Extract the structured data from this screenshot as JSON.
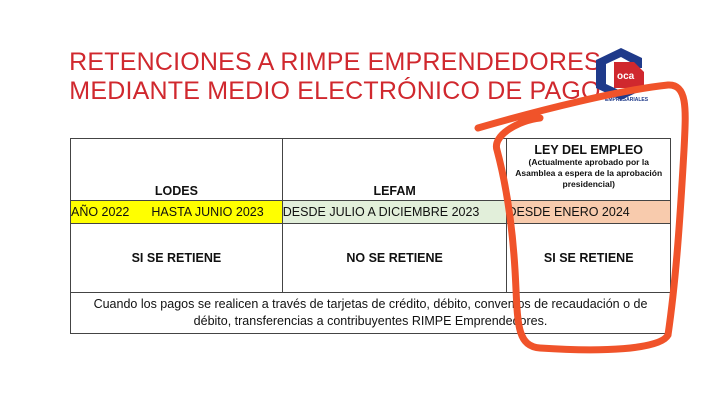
{
  "title": {
    "line1": "RETENCIONES A RIMPE EMPRENDEDORES",
    "line2": "MEDIANTE MEDIO ELECTRÓNICO DE PAGO"
  },
  "logo": {
    "text": "oca",
    "subtitle": "EMPRESARIALES"
  },
  "table": {
    "columns": [
      {
        "header": "LODES",
        "period_a": "AÑO 2022",
        "period_b": "HASTA JUNIO 2023",
        "result": "SI SE RETIENE",
        "color": "#ffff00"
      },
      {
        "header": "LEFAM",
        "period": "DESDE JULIO A DICIEMBRE 2023",
        "result": "NO SE RETIENE",
        "color": "#e2efda"
      },
      {
        "header": "LEY DEL EMPLEO",
        "note": "(Actualmente aprobado por la Asamblea a espera de la aprobación presidencial)",
        "period": "DESDE ENERO 2024",
        "result": "SI SE RETIENE",
        "color": "#f8cbad"
      }
    ],
    "footer": "Cuando los pagos se realicen a través de tarjetas de crédito, débito, convenios de recaudación o de débito, transferencias a contribuyentes RIMPE Emprendedores."
  },
  "annotation_color": "#f0532a"
}
